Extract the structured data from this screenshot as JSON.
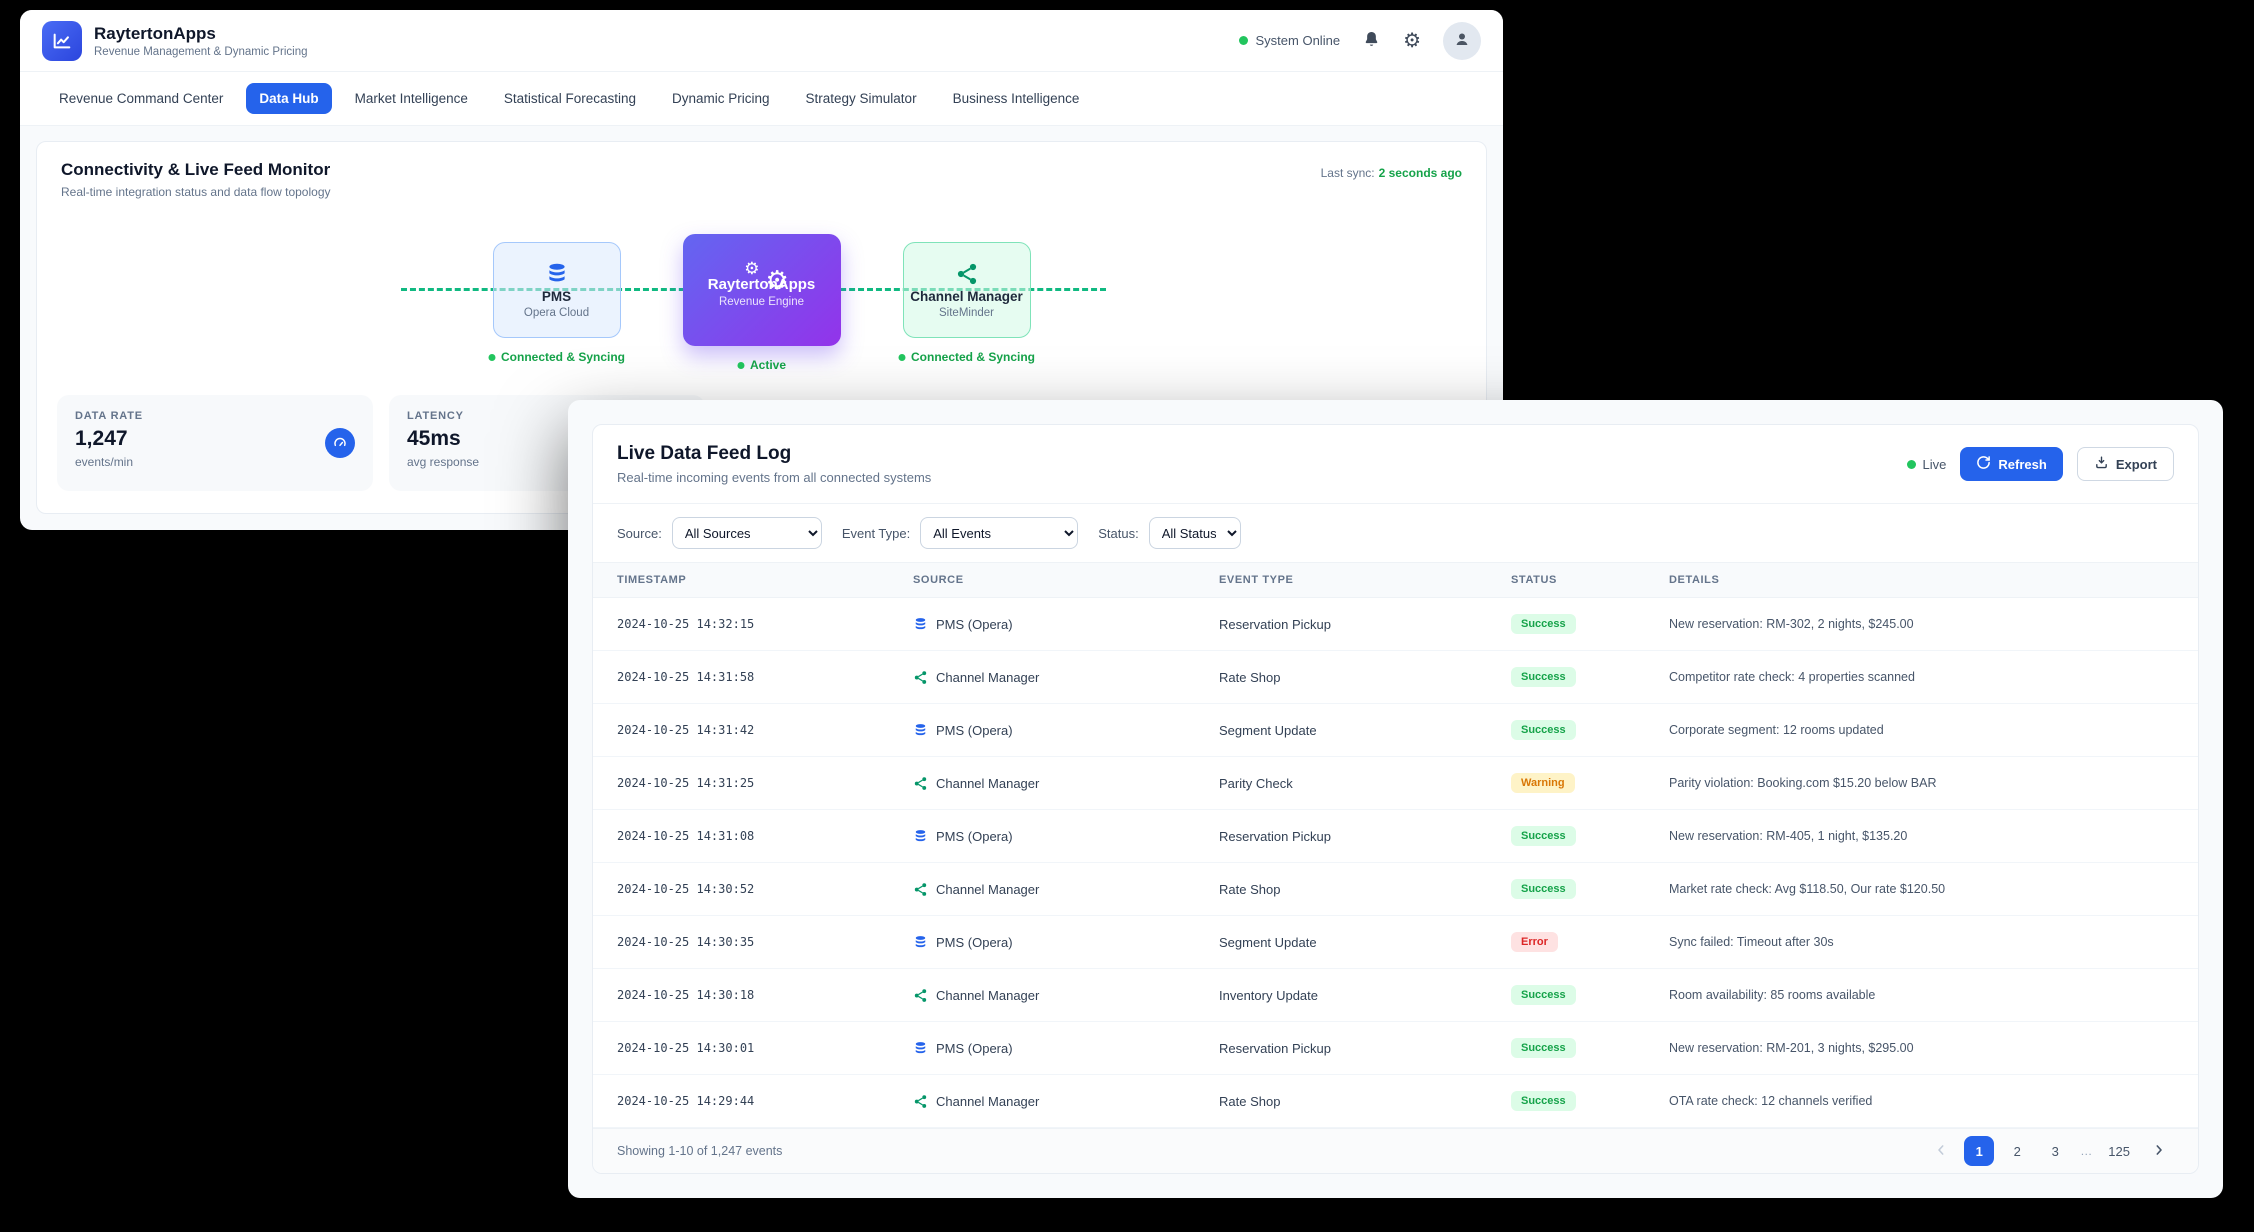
{
  "colors": {
    "accent": "#2563eb",
    "success": "#16a34a",
    "warning": "#d97706",
    "error": "#dc2626",
    "live": "#22c55e",
    "flow_line": "#10b981"
  },
  "app": {
    "name": "RaytertonApps",
    "tagline": "Revenue Management & Dynamic Pricing",
    "system_status": "System Online"
  },
  "nav": {
    "tabs": [
      {
        "label": "Revenue Command Center",
        "active": false
      },
      {
        "label": "Data Hub",
        "active": true
      },
      {
        "label": "Market Intelligence",
        "active": false
      },
      {
        "label": "Statistical Forecasting",
        "active": false
      },
      {
        "label": "Dynamic Pricing",
        "active": false
      },
      {
        "label": "Strategy Simulator",
        "active": false
      },
      {
        "label": "Business Intelligence",
        "active": false
      }
    ]
  },
  "monitor": {
    "title": "Connectivity & Live Feed Monitor",
    "subtitle": "Real-time integration status and data flow topology",
    "last_sync_label": "Last sync:",
    "last_sync_value": "2 seconds ago",
    "nodes": [
      {
        "title": "PMS",
        "subtitle": "Opera Cloud",
        "status": "Connected & Syncing",
        "icon": "database-icon",
        "style": "pms"
      },
      {
        "title": "RaytertonApps",
        "subtitle": "Revenue Engine",
        "status": "Active",
        "icon": "gears-icon",
        "style": "engine"
      },
      {
        "title": "Channel Manager",
        "subtitle": "SiteMinder",
        "status": "Connected & Syncing",
        "icon": "share-icon",
        "style": "cm"
      }
    ],
    "stats": [
      {
        "label": "DATA RATE",
        "value": "1,247",
        "sub": "events/min",
        "icon": "gauge-icon"
      },
      {
        "label": "LATENCY",
        "value": "45ms",
        "sub": "avg response",
        "icon": "gauge-icon"
      }
    ]
  },
  "feed": {
    "title": "Live Data Feed Log",
    "subtitle": "Real-time incoming events from all connected systems",
    "live_label": "Live",
    "refresh_label": "Refresh",
    "export_label": "Export",
    "filters": [
      {
        "label": "Source:",
        "value": "All Sources",
        "name": "source-filter"
      },
      {
        "label": "Event Type:",
        "value": "All Events",
        "name": "event-type-filter"
      },
      {
        "label": "Status:",
        "value": "All Status",
        "name": "status-filter"
      }
    ],
    "table": {
      "headers": [
        "TIMESTAMP",
        "SOURCE",
        "EVENT TYPE",
        "STATUS",
        "DETAILS"
      ],
      "rows": [
        {
          "timestamp": "2024-10-25 14:32:15",
          "source": "PMS (Opera)",
          "source_icon": "database-icon",
          "event_type": "Reservation Pickup",
          "status": "Success",
          "details": "New reservation: RM-302, 2 nights, $245.00"
        },
        {
          "timestamp": "2024-10-25 14:31:58",
          "source": "Channel Manager",
          "source_icon": "share-icon",
          "event_type": "Rate Shop",
          "status": "Success",
          "details": "Competitor rate check: 4 properties scanned"
        },
        {
          "timestamp": "2024-10-25 14:31:42",
          "source": "PMS (Opera)",
          "source_icon": "database-icon",
          "event_type": "Segment Update",
          "status": "Success",
          "details": "Corporate segment: 12 rooms updated"
        },
        {
          "timestamp": "2024-10-25 14:31:25",
          "source": "Channel Manager",
          "source_icon": "share-icon",
          "event_type": "Parity Check",
          "status": "Warning",
          "details": "Parity violation: Booking.com $15.20 below BAR"
        },
        {
          "timestamp": "2024-10-25 14:31:08",
          "source": "PMS (Opera)",
          "source_icon": "database-icon",
          "event_type": "Reservation Pickup",
          "status": "Success",
          "details": "New reservation: RM-405, 1 night, $135.20"
        },
        {
          "timestamp": "2024-10-25 14:30:52",
          "source": "Channel Manager",
          "source_icon": "share-icon",
          "event_type": "Rate Shop",
          "status": "Success",
          "details": "Market rate check: Avg $118.50, Our rate $120.50"
        },
        {
          "timestamp": "2024-10-25 14:30:35",
          "source": "PMS (Opera)",
          "source_icon": "database-icon",
          "event_type": "Segment Update",
          "status": "Error",
          "details": "Sync failed: Timeout after 30s"
        },
        {
          "timestamp": "2024-10-25 14:30:18",
          "source": "Channel Manager",
          "source_icon": "share-icon",
          "event_type": "Inventory Update",
          "status": "Success",
          "details": "Room availability: 85 rooms available"
        },
        {
          "timestamp": "2024-10-25 14:30:01",
          "source": "PMS (Opera)",
          "source_icon": "database-icon",
          "event_type": "Reservation Pickup",
          "status": "Success",
          "details": "New reservation: RM-201, 3 nights, $295.00"
        },
        {
          "timestamp": "2024-10-25 14:29:44",
          "source": "Channel Manager",
          "source_icon": "share-icon",
          "event_type": "Rate Shop",
          "status": "Success",
          "details": "OTA rate check: 12 channels verified"
        }
      ]
    },
    "footer": {
      "summary": "Showing 1-10 of 1,247 events",
      "pages": [
        "1",
        "2",
        "3",
        "…",
        "125"
      ],
      "active_page": "1"
    }
  }
}
